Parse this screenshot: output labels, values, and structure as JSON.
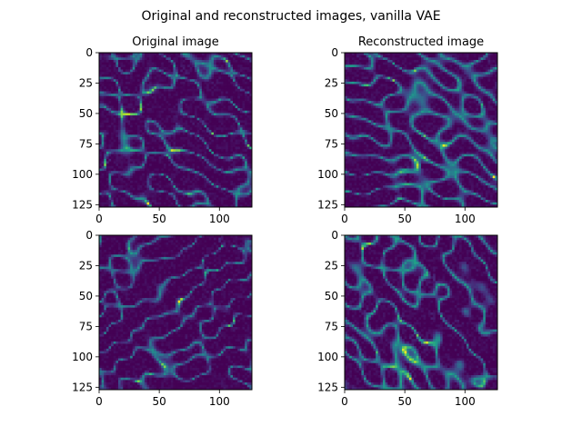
{
  "title": "Original and reconstructed images, vanilla VAE",
  "colors": {
    "background": "#ffffff",
    "axes": "#000000",
    "colormap": "viridis"
  },
  "chart_data": [
    {
      "type": "heatmap",
      "title": "Original image",
      "xlim": [
        0,
        127
      ],
      "ylim": [
        127,
        0
      ],
      "xticks": [
        0,
        50,
        100
      ],
      "yticks": [
        0,
        25,
        50,
        75,
        100,
        125
      ],
      "grid": false,
      "description_of_values": "128x128 intensity field, cosmic-web filamentary texture"
    },
    {
      "type": "heatmap",
      "title": "Reconstructed image",
      "xlim": [
        0,
        127
      ],
      "ylim": [
        127,
        0
      ],
      "xticks": [
        0,
        50,
        100
      ],
      "yticks": [
        0,
        25,
        50,
        75,
        100,
        125
      ],
      "grid": false
    },
    {
      "type": "heatmap",
      "title": "",
      "xlim": [
        0,
        127
      ],
      "ylim": [
        127,
        0
      ],
      "xticks": [
        0,
        50,
        100
      ],
      "yticks": [
        0,
        25,
        50,
        75,
        100,
        125
      ],
      "grid": false
    },
    {
      "type": "heatmap",
      "title": "",
      "xlim": [
        0,
        127
      ],
      "ylim": [
        127,
        0
      ],
      "xticks": [
        0,
        50,
        100
      ],
      "yticks": [
        0,
        25,
        50,
        75,
        100,
        125
      ],
      "grid": false
    }
  ]
}
